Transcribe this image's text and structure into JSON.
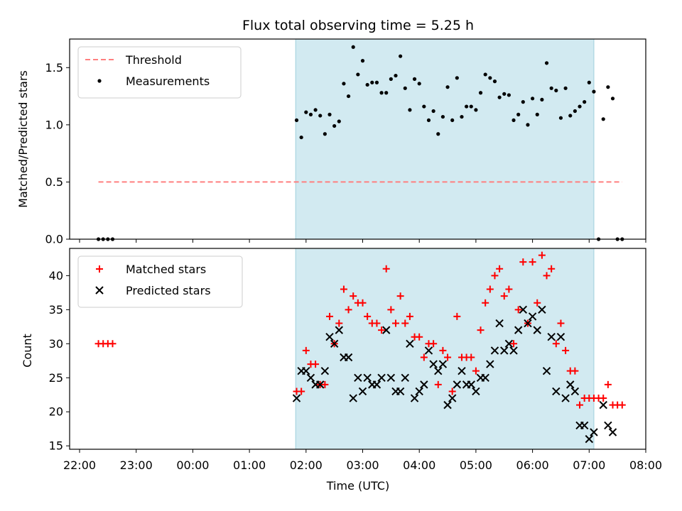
{
  "chart_data": [
    {
      "type": "scatter",
      "title": "Flux total observing time = 5.25 h",
      "ylabel": "Matched/Predicted stars",
      "xlabel": "",
      "ylim": [
        0,
        1.75
      ],
      "yticks": [
        "0.0",
        "0.5",
        "1.0",
        "1.5"
      ],
      "shaded_interval": [
        "01:49",
        "07:05"
      ],
      "shaded_color": "#add8e6",
      "legend_position": "top-left",
      "threshold": {
        "name": "Threshold",
        "value": 0.5,
        "x_range": [
          "22:20",
          "07:35"
        ],
        "color": "#ff7f7f"
      },
      "series": [
        {
          "name": "Measurements",
          "color": "#000000",
          "points": [
            [
              "22:20",
              0
            ],
            [
              "22:25",
              0
            ],
            [
              "22:30",
              0
            ],
            [
              "22:35",
              0
            ],
            [
              "01:50",
              1.04
            ],
            [
              "01:55",
              0.89
            ],
            [
              "02:00",
              1.11
            ],
            [
              "02:05",
              1.09
            ],
            [
              "02:10",
              1.13
            ],
            [
              "02:15",
              1.08
            ],
            [
              "02:20",
              0.92
            ],
            [
              "02:25",
              1.09
            ],
            [
              "02:30",
              0.99
            ],
            [
              "02:35",
              1.03
            ],
            [
              "02:40",
              1.36
            ],
            [
              "02:45",
              1.25
            ],
            [
              "02:50",
              1.68
            ],
            [
              "02:55",
              1.44
            ],
            [
              "03:00",
              1.56
            ],
            [
              "03:05",
              1.35
            ],
            [
              "03:10",
              1.37
            ],
            [
              "03:15",
              1.37
            ],
            [
              "03:20",
              1.28
            ],
            [
              "03:25",
              1.28
            ],
            [
              "03:30",
              1.4
            ],
            [
              "03:35",
              1.43
            ],
            [
              "03:40",
              1.6
            ],
            [
              "03:45",
              1.32
            ],
            [
              "03:50",
              1.13
            ],
            [
              "03:55",
              1.4
            ],
            [
              "04:00",
              1.36
            ],
            [
              "04:05",
              1.16
            ],
            [
              "04:10",
              1.04
            ],
            [
              "04:15",
              1.12
            ],
            [
              "04:20",
              0.92
            ],
            [
              "04:25",
              1.07
            ],
            [
              "04:30",
              1.33
            ],
            [
              "04:35",
              1.04
            ],
            [
              "04:40",
              1.41
            ],
            [
              "04:45",
              1.07
            ],
            [
              "04:50",
              1.16
            ],
            [
              "04:55",
              1.16
            ],
            [
              "05:00",
              1.13
            ],
            [
              "05:05",
              1.28
            ],
            [
              "05:10",
              1.44
            ],
            [
              "05:15",
              1.41
            ],
            [
              "05:20",
              1.38
            ],
            [
              "05:25",
              1.24
            ],
            [
              "05:30",
              1.27
            ],
            [
              "05:35",
              1.26
            ],
            [
              "05:40",
              1.04
            ],
            [
              "05:45",
              1.09
            ],
            [
              "05:50",
              1.2
            ],
            [
              "05:55",
              1.0
            ],
            [
              "06:00",
              1.23
            ],
            [
              "06:05",
              1.09
            ],
            [
              "06:10",
              1.22
            ],
            [
              "06:15",
              1.54
            ],
            [
              "06:20",
              1.32
            ],
            [
              "06:25",
              1.3
            ],
            [
              "06:30",
              1.06
            ],
            [
              "06:35",
              1.32
            ],
            [
              "06:40",
              1.08
            ],
            [
              "06:45",
              1.12
            ],
            [
              "06:50",
              1.16
            ],
            [
              "06:55",
              1.2
            ],
            [
              "07:00",
              1.37
            ],
            [
              "07:05",
              1.29
            ],
            [
              "07:10",
              0
            ],
            [
              "07:15",
              1.05
            ],
            [
              "07:20",
              1.33
            ],
            [
              "07:25",
              1.23
            ],
            [
              "07:30",
              0
            ],
            [
              "07:35",
              0
            ]
          ]
        }
      ]
    },
    {
      "type": "scatter",
      "title": "",
      "ylabel": "Count",
      "xlabel": "Time (UTC)",
      "ylim": [
        14.5,
        44
      ],
      "yticks": [
        "15",
        "20",
        "25",
        "30",
        "35",
        "40"
      ],
      "xticks": [
        "22:00",
        "23:00",
        "00:00",
        "01:00",
        "02:00",
        "03:00",
        "04:00",
        "05:00",
        "06:00",
        "07:00",
        "08:00"
      ],
      "shaded_interval": [
        "01:49",
        "07:05"
      ],
      "shaded_color": "#add8e6",
      "legend_position": "top-left",
      "series": [
        {
          "name": "Matched stars",
          "color": "#ff0000",
          "points": [
            [
              "22:20",
              30
            ],
            [
              "22:25",
              30
            ],
            [
              "22:30",
              30
            ],
            [
              "22:35",
              30
            ],
            [
              "01:50",
              23
            ],
            [
              "01:55",
              23
            ],
            [
              "02:00",
              29
            ],
            [
              "02:05",
              27
            ],
            [
              "02:10",
              27
            ],
            [
              "02:15",
              24
            ],
            [
              "02:20",
              24
            ],
            [
              "02:25",
              34
            ],
            [
              "02:30",
              30
            ],
            [
              "02:35",
              33
            ],
            [
              "02:40",
              38
            ],
            [
              "02:45",
              35
            ],
            [
              "02:50",
              37
            ],
            [
              "02:55",
              36
            ],
            [
              "03:00",
              36
            ],
            [
              "03:05",
              34
            ],
            [
              "03:10",
              33
            ],
            [
              "03:15",
              33
            ],
            [
              "03:20",
              32
            ],
            [
              "03:25",
              41
            ],
            [
              "03:30",
              35
            ],
            [
              "03:35",
              33
            ],
            [
              "03:40",
              37
            ],
            [
              "03:45",
              33
            ],
            [
              "03:50",
              34
            ],
            [
              "03:55",
              31
            ],
            [
              "04:00",
              31
            ],
            [
              "04:05",
              28
            ],
            [
              "04:10",
              30
            ],
            [
              "04:15",
              30
            ],
            [
              "04:20",
              24
            ],
            [
              "04:25",
              29
            ],
            [
              "04:30",
              28
            ],
            [
              "04:35",
              23
            ],
            [
              "04:40",
              34
            ],
            [
              "04:45",
              28
            ],
            [
              "04:50",
              28
            ],
            [
              "04:55",
              28
            ],
            [
              "05:00",
              26
            ],
            [
              "05:05",
              32
            ],
            [
              "05:10",
              36
            ],
            [
              "05:15",
              38
            ],
            [
              "05:20",
              40
            ],
            [
              "05:25",
              41
            ],
            [
              "05:30",
              37
            ],
            [
              "05:35",
              38
            ],
            [
              "05:40",
              30
            ],
            [
              "05:45",
              35
            ],
            [
              "05:50",
              42
            ],
            [
              "05:55",
              33
            ],
            [
              "06:00",
              42
            ],
            [
              "06:05",
              36
            ],
            [
              "06:10",
              43
            ],
            [
              "06:15",
              40
            ],
            [
              "06:20",
              41
            ],
            [
              "06:25",
              30
            ],
            [
              "06:30",
              33
            ],
            [
              "06:35",
              29
            ],
            [
              "06:40",
              26
            ],
            [
              "06:45",
              26
            ],
            [
              "06:50",
              21
            ],
            [
              "06:55",
              22
            ],
            [
              "07:00",
              22
            ],
            [
              "07:05",
              22
            ],
            [
              "07:10",
              22
            ],
            [
              "07:15",
              22
            ],
            [
              "07:20",
              24
            ],
            [
              "07:25",
              21
            ],
            [
              "07:30",
              21
            ],
            [
              "07:35",
              21
            ]
          ]
        },
        {
          "name": "Predicted stars",
          "color": "#000000",
          "points": [
            [
              "01:50",
              22
            ],
            [
              "01:55",
              26
            ],
            [
              "02:00",
              26
            ],
            [
              "02:05",
              25
            ],
            [
              "02:10",
              24
            ],
            [
              "02:15",
              24
            ],
            [
              "02:20",
              26
            ],
            [
              "02:25",
              31
            ],
            [
              "02:30",
              30
            ],
            [
              "02:35",
              32
            ],
            [
              "02:40",
              28
            ],
            [
              "02:45",
              28
            ],
            [
              "02:50",
              22
            ],
            [
              "02:55",
              25
            ],
            [
              "03:00",
              23
            ],
            [
              "03:05",
              25
            ],
            [
              "03:10",
              24
            ],
            [
              "03:15",
              24
            ],
            [
              "03:20",
              25
            ],
            [
              "03:25",
              32
            ],
            [
              "03:30",
              25
            ],
            [
              "03:35",
              23
            ],
            [
              "03:40",
              23
            ],
            [
              "03:45",
              25
            ],
            [
              "03:50",
              30
            ],
            [
              "03:55",
              22
            ],
            [
              "04:00",
              23
            ],
            [
              "04:05",
              24
            ],
            [
              "04:10",
              29
            ],
            [
              "04:15",
              27
            ],
            [
              "04:20",
              26
            ],
            [
              "04:25",
              27
            ],
            [
              "04:30",
              21
            ],
            [
              "04:35",
              22
            ],
            [
              "04:40",
              24
            ],
            [
              "04:45",
              26
            ],
            [
              "04:50",
              24
            ],
            [
              "04:55",
              24
            ],
            [
              "05:00",
              23
            ],
            [
              "05:05",
              25
            ],
            [
              "05:10",
              25
            ],
            [
              "05:15",
              27
            ],
            [
              "05:20",
              29
            ],
            [
              "05:25",
              33
            ],
            [
              "05:30",
              29
            ],
            [
              "05:35",
              30
            ],
            [
              "05:40",
              29
            ],
            [
              "05:45",
              32
            ],
            [
              "05:50",
              35
            ],
            [
              "05:55",
              33
            ],
            [
              "06:00",
              34
            ],
            [
              "06:05",
              32
            ],
            [
              "06:10",
              35
            ],
            [
              "06:15",
              26
            ],
            [
              "06:20",
              31
            ],
            [
              "06:25",
              23
            ],
            [
              "06:30",
              31
            ],
            [
              "06:35",
              22
            ],
            [
              "06:40",
              24
            ],
            [
              "06:45",
              23
            ],
            [
              "06:50",
              18
            ],
            [
              "06:55",
              18
            ],
            [
              "07:00",
              16
            ],
            [
              "07:05",
              17
            ],
            [
              "07:10",
              null
            ],
            [
              "07:15",
              21
            ],
            [
              "07:20",
              18
            ],
            [
              "07:25",
              17
            ]
          ]
        }
      ]
    }
  ]
}
